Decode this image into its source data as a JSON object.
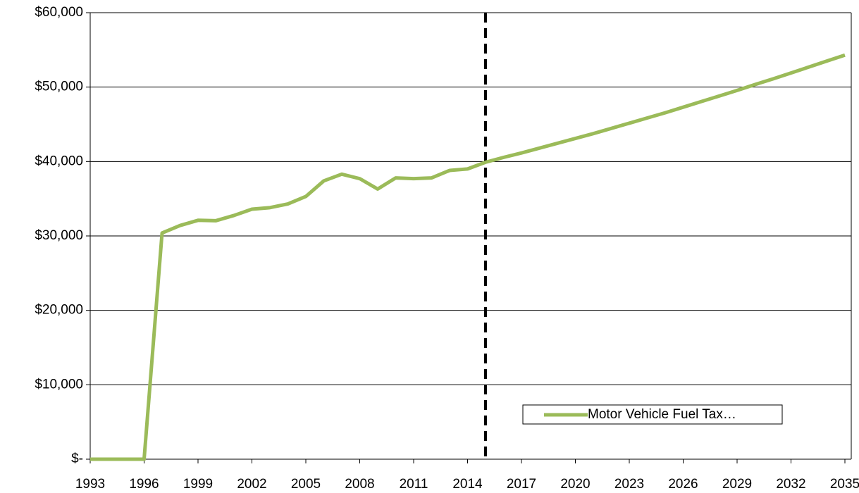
{
  "chart_data": {
    "type": "line",
    "x": [
      1993,
      1994,
      1995,
      1996,
      1997,
      1998,
      1999,
      2000,
      2001,
      2002,
      2003,
      2004,
      2005,
      2006,
      2007,
      2008,
      2009,
      2010,
      2011,
      2012,
      2013,
      2014,
      2015,
      2016,
      2017,
      2018,
      2019,
      2020,
      2021,
      2022,
      2023,
      2024,
      2025,
      2026,
      2027,
      2028,
      2029,
      2030,
      2031,
      2032,
      2033,
      2034,
      2035
    ],
    "series": [
      {
        "name": "Motor Vehicle Fuel Tax…",
        "color": "#9bbb59",
        "values": [
          0,
          0,
          0,
          0,
          30400,
          31400,
          32100,
          32050,
          32750,
          33600,
          33800,
          34300,
          35300,
          37400,
          38300,
          37700,
          36300,
          37800,
          37700,
          37800,
          38800,
          39000,
          39900,
          40550,
          41150,
          41800,
          42450,
          43100,
          43750,
          44450,
          45150,
          45850,
          46550,
          47300,
          48050,
          48800,
          49550,
          50350,
          51100,
          51900,
          52700,
          53500,
          54300
        ]
      }
    ],
    "xlim": [
      1993,
      2035
    ],
    "xticks": [
      1993,
      1996,
      1999,
      2002,
      2005,
      2008,
      2011,
      2014,
      2017,
      2020,
      2023,
      2026,
      2029,
      2032,
      2035
    ],
    "ylim": [
      0,
      60000
    ],
    "yticks": [
      {
        "value": 0,
        "label": "$-"
      },
      {
        "value": 10000,
        "label": "$10,000"
      },
      {
        "value": 20000,
        "label": "$20,000"
      },
      {
        "value": 30000,
        "label": "$30,000"
      },
      {
        "value": 40000,
        "label": "$40,000"
      },
      {
        "value": 50000,
        "label": "$50,000"
      },
      {
        "value": 60000,
        "label": "$60,000"
      }
    ],
    "grid": true,
    "vline": 2015,
    "legend": "lower right"
  }
}
